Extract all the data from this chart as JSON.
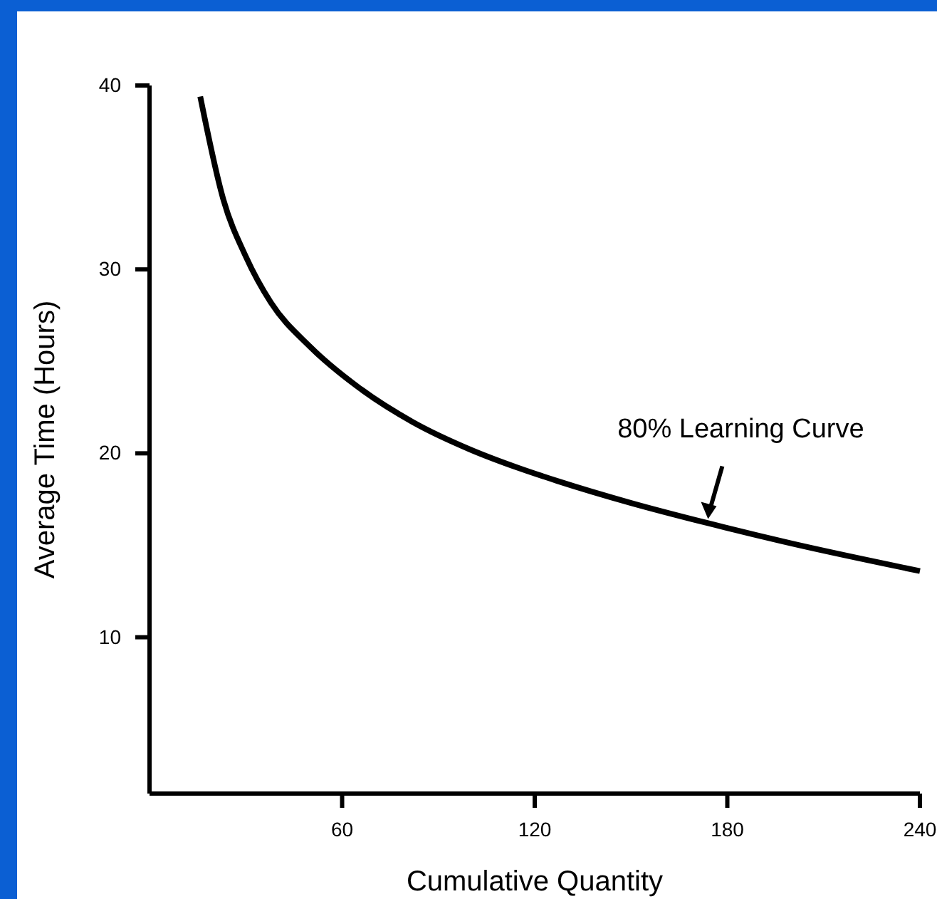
{
  "chart_data": {
    "type": "line",
    "xlabel": "Cumulative Quantity",
    "ylabel": "Average Time (Hours)",
    "x": [
      15.8,
      23,
      30,
      37.8,
      50,
      65,
      82,
      100,
      115,
      127,
      150,
      174,
      200,
      240
    ],
    "series": [
      {
        "color": "#000000",
        "values": [
          39.4,
          33.8,
          30.7,
          28.2,
          25.8,
          23.6,
          21.7,
          20.2,
          19.2,
          18.5,
          17.3,
          16.2,
          15.1,
          13.6
        ]
      }
    ],
    "xlim": [
      0,
      240
    ],
    "xticks": [
      60,
      120,
      180,
      240
    ],
    "ylim": [
      1.5,
      40
    ],
    "yticks": [
      10,
      20,
      30,
      40
    ],
    "annotations": [
      {
        "text": "80% Learning Curve",
        "x": 174,
        "y": 16.2
      }
    ],
    "grid": false,
    "marker": "none",
    "line_style": "solid"
  }
}
